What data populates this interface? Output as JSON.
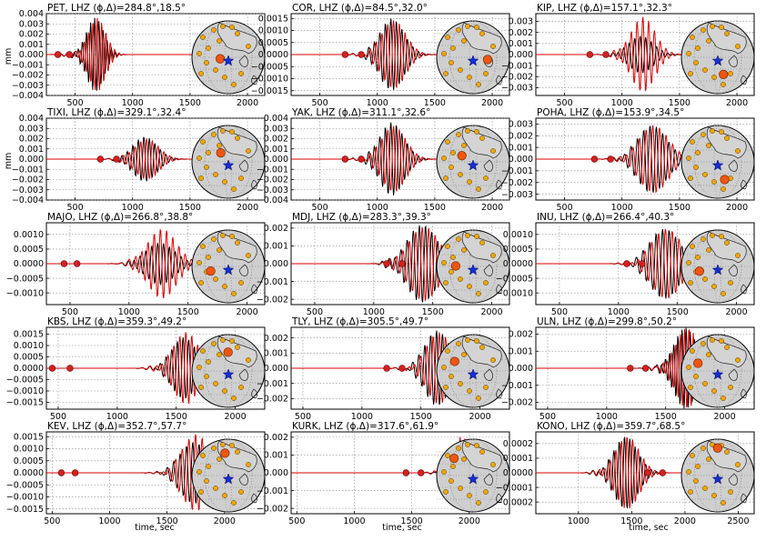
{
  "figure": {
    "ylabel_unit": "mm",
    "xlabel": "time, sec",
    "component_axis_label": "LHZ (ϕ,Δ)"
  },
  "chart_data": [
    {
      "type": "line",
      "station": "PET",
      "title": "PET, LHZ (ϕ,Δ)=284.8°,18.5°",
      "azimuth": 284.8,
      "distance": 18.5,
      "xticks": [
        500,
        1000,
        1500,
        2000
      ],
      "xlim": [
        250,
        2150
      ],
      "yticks": [
        -0.004,
        -0.003,
        -0.002,
        -0.001,
        0.0,
        0.001,
        0.002,
        0.003,
        0.004
      ],
      "ylim": [
        -0.004,
        0.004
      ],
      "ytick_labels": [
        "−0.004",
        "−0.003",
        "−0.002",
        "−0.001",
        "0.000",
        "0.001",
        "0.002",
        "0.003",
        "0.004"
      ],
      "markers_x": [
        350,
        450
      ],
      "arrival": 590,
      "peak": 0.0036,
      "black_amp": 1.0,
      "red_amp": 1.0,
      "dur": 240,
      "period": 36,
      "series": [
        {
          "name": "data",
          "color": "#000000"
        },
        {
          "name": "synthetic",
          "color": "#dd0000"
        }
      ]
    },
    {
      "type": "line",
      "station": "COR",
      "title": "COR, LHZ (ϕ,Δ)=84.5°,32.0°",
      "azimuth": 84.5,
      "distance": 32.0,
      "xticks": [
        500,
        1000,
        1500,
        2000
      ],
      "xlim": [
        250,
        2150
      ],
      "yticks": [
        -0.0015,
        -0.001,
        -0.0005,
        0.0,
        0.0005,
        0.001,
        0.0015
      ],
      "ylim": [
        -0.0017,
        0.0017
      ],
      "ytick_labels": [
        "−0.0015",
        "−0.0010",
        "−0.0005",
        "0.0000",
        "0.0005",
        "0.0010",
        "0.0015"
      ],
      "markers_x": [
        720,
        860
      ],
      "arrival": 1010,
      "peak": 0.0015,
      "black_amp": 1.0,
      "red_amp": 0.95,
      "dur": 330,
      "period": 48,
      "series": [
        {
          "name": "data",
          "color": "#000000"
        },
        {
          "name": "synthetic",
          "color": "#dd0000"
        }
      ]
    },
    {
      "type": "line",
      "station": "KIP",
      "title": "KIP, LHZ (ϕ,Δ)=157.1°,32.3°",
      "azimuth": 157.1,
      "distance": 32.3,
      "xticks": [
        500,
        1000,
        1500,
        2000
      ],
      "xlim": [
        250,
        2150
      ],
      "yticks": [
        -0.003,
        -0.002,
        -0.001,
        0.0,
        0.001,
        0.002,
        0.003
      ],
      "ylim": [
        -0.0037,
        0.0037
      ],
      "ytick_labels": [
        "−0.003",
        "−0.002",
        "−0.001",
        "0.000",
        "0.001",
        "0.002",
        "0.003"
      ],
      "markers_x": [
        720,
        860
      ],
      "arrival": 1050,
      "peak": 0.0034,
      "black_amp": 0.5,
      "red_amp": 1.0,
      "dur": 330,
      "period": 48,
      "series": [
        {
          "name": "data",
          "color": "#000000"
        },
        {
          "name": "synthetic",
          "color": "#dd0000"
        }
      ]
    },
    {
      "type": "line",
      "station": "TIXI",
      "title": "TIXI, LHZ (ϕ,Δ)=329.1°,32.4°",
      "azimuth": 329.1,
      "distance": 32.4,
      "xticks": [
        500,
        1000,
        1500,
        2000
      ],
      "xlim": [
        250,
        2150
      ],
      "yticks": [
        -0.004,
        -0.003,
        -0.002,
        -0.001,
        0.0,
        0.001,
        0.002,
        0.003,
        0.004
      ],
      "ylim": [
        -0.004,
        0.004
      ],
      "ytick_labels": [
        "−0.004",
        "−0.003",
        "−0.002",
        "−0.001",
        "0.000",
        "0.001",
        "0.002",
        "0.003",
        "0.004"
      ],
      "markers_x": [
        720,
        860
      ],
      "arrival": 990,
      "peak": 0.0022,
      "black_amp": 1.0,
      "red_amp": 0.9,
      "dur": 330,
      "period": 48,
      "series": [
        {
          "name": "data",
          "color": "#000000"
        },
        {
          "name": "synthetic",
          "color": "#dd0000"
        }
      ]
    },
    {
      "type": "line",
      "station": "YAK",
      "title": "YAK, LHZ (ϕ,Δ)=311.1°,32.6°",
      "azimuth": 311.1,
      "distance": 32.6,
      "xticks": [
        500,
        1000,
        1500,
        2000
      ],
      "xlim": [
        250,
        2150
      ],
      "yticks": [
        -0.004,
        -0.003,
        -0.002,
        -0.001,
        0.0,
        0.001,
        0.002,
        0.003,
        0.004
      ],
      "ylim": [
        -0.004,
        0.004
      ],
      "ytick_labels": [
        "−0.004",
        "−0.003",
        "−0.002",
        "−0.001",
        "0.000",
        "0.001",
        "0.002",
        "0.003",
        "0.004"
      ],
      "markers_x": [
        720,
        860
      ],
      "arrival": 1010,
      "peak": 0.0036,
      "black_amp": 1.0,
      "red_amp": 0.9,
      "dur": 330,
      "period": 48,
      "series": [
        {
          "name": "data",
          "color": "#000000"
        },
        {
          "name": "synthetic",
          "color": "#dd0000"
        }
      ]
    },
    {
      "type": "line",
      "station": "POHA",
      "title": "POHA, LHZ (ϕ,Δ)=153.9°,34.5°",
      "azimuth": 153.9,
      "distance": 34.5,
      "xticks": [
        500,
        1000,
        1500,
        2000
      ],
      "xlim": [
        250,
        2150
      ],
      "yticks": [
        -0.003,
        -0.002,
        -0.001,
        0.0,
        0.001,
        0.002,
        0.003
      ],
      "ylim": [
        -0.0035,
        0.0035
      ],
      "ytick_labels": [
        "−0.003",
        "−0.002",
        "−0.001",
        "0.000",
        "0.001",
        "0.002",
        "0.003"
      ],
      "markers_x": [
        760,
        900
      ],
      "arrival": 1120,
      "peak": 0.0029,
      "black_amp": 1.0,
      "red_amp": 1.0,
      "dur": 400,
      "period": 55,
      "series": [
        {
          "name": "data",
          "color": "#000000"
        },
        {
          "name": "synthetic",
          "color": "#dd0000"
        }
      ]
    },
    {
      "type": "line",
      "station": "MAJO",
      "title": "MAJO, LHZ (ϕ,Δ)=266.8°,38.8°",
      "azimuth": 266.8,
      "distance": 38.8,
      "xticks": [
        500,
        1000,
        1500,
        2000
      ],
      "xlim": [
        300,
        2150
      ],
      "yticks": [
        -0.001,
        -0.0005,
        0.0,
        0.0005,
        0.001
      ],
      "ylim": [
        -0.0014,
        0.0014
      ],
      "ytick_labels": [
        "−0.0010",
        "−0.0005",
        "0.0000",
        "0.0005",
        "0.0010"
      ],
      "markers_x": [
        450,
        560
      ],
      "arrival": 1130,
      "peak": 0.0012,
      "black_amp": 0.6,
      "red_amp": 1.0,
      "dur": 380,
      "period": 50,
      "series": [
        {
          "name": "data",
          "color": "#000000"
        },
        {
          "name": "synthetic",
          "color": "#dd0000"
        }
      ]
    },
    {
      "type": "line",
      "station": "MDJ",
      "title": "MDJ, LHZ (ϕ,Δ)=283.3°,39.3°",
      "azimuth": 283.3,
      "distance": 39.3,
      "xticks": [
        500,
        1000,
        1500,
        2000
      ],
      "xlim": [
        300,
        2150
      ],
      "yticks": [
        -0.002,
        -0.001,
        0.0,
        0.001,
        0.002
      ],
      "ylim": [
        -0.0023,
        0.0023
      ],
      "ytick_labels": [
        "−0.002",
        "−0.001",
        "0.000",
        "0.001",
        "0.002"
      ],
      "markers_x": [
        1110,
        1240
      ],
      "arrival": 1270,
      "peak": 0.0022,
      "black_amp": 1.0,
      "red_amp": 0.95,
      "dur": 400,
      "period": 52,
      "series": [
        {
          "name": "data",
          "color": "#000000"
        },
        {
          "name": "synthetic",
          "color": "#dd0000"
        }
      ]
    },
    {
      "type": "line",
      "station": "INU",
      "title": "INU, LHZ (ϕ,Δ)=266.4°,40.3°",
      "azimuth": 266.4,
      "distance": 40.3,
      "xticks": [
        500,
        1000,
        1500,
        2000
      ],
      "xlim": [
        300,
        2150
      ],
      "yticks": [
        -0.001,
        -0.0005,
        0.0,
        0.0005,
        0.001
      ],
      "ylim": [
        -0.0014,
        0.0014
      ],
      "ytick_labels": [
        "−0.0010",
        "−0.0005",
        "0.0000",
        "0.0005",
        "0.0010"
      ],
      "markers_x": [
        1070,
        1200
      ],
      "arrival": 1250,
      "peak": 0.0012,
      "black_amp": 1.0,
      "red_amp": 1.0,
      "dur": 400,
      "period": 55,
      "series": [
        {
          "name": "data",
          "color": "#000000"
        },
        {
          "name": "synthetic",
          "color": "#dd0000"
        }
      ]
    },
    {
      "type": "line",
      "station": "KBS",
      "title": "KBS, LHZ (ϕ,Δ)=359.3°,49.2°",
      "azimuth": 359.3,
      "distance": 49.2,
      "xticks": [
        500,
        1000,
        1500,
        2000
      ],
      "xlim": [
        400,
        2250
      ],
      "yticks": [
        -0.0015,
        -0.001,
        -0.0005,
        0.0,
        0.0005,
        0.001,
        0.0015
      ],
      "ylim": [
        -0.0018,
        0.0018
      ],
      "ytick_labels": [
        "−0.0015",
        "−0.0010",
        "−0.0005",
        "0.0000",
        "0.0005",
        "0.0010",
        "0.0015"
      ],
      "markers_x": [
        450,
        600
      ],
      "arrival": 1450,
      "peak": 0.0016,
      "black_amp": 0.85,
      "red_amp": 1.0,
      "dur": 330,
      "period": 48,
      "series": [
        {
          "name": "data",
          "color": "#000000"
        },
        {
          "name": "synthetic",
          "color": "#dd0000"
        }
      ]
    },
    {
      "type": "line",
      "station": "TLY",
      "title": "TLY, LHZ (ϕ,Δ)=305.5°,49.7°",
      "azimuth": 305.5,
      "distance": 49.7,
      "xticks": [
        500,
        1000,
        1500,
        2000
      ],
      "xlim": [
        400,
        2250
      ],
      "yticks": [
        -0.002,
        -0.001,
        0.0,
        0.001,
        0.002
      ],
      "ylim": [
        -0.0027,
        0.0027
      ],
      "ytick_labels": [
        "−0.002",
        "−0.001",
        "0.000",
        "0.001",
        "0.002"
      ],
      "markers_x": [
        1210,
        1340
      ],
      "arrival": 1520,
      "peak": 0.0025,
      "black_amp": 1.0,
      "red_amp": 0.95,
      "dur": 330,
      "period": 50,
      "series": [
        {
          "name": "data",
          "color": "#000000"
        },
        {
          "name": "synthetic",
          "color": "#dd0000"
        }
      ]
    },
    {
      "type": "line",
      "station": "ULN",
      "title": "ULN, LHZ (ϕ,Δ)=299.8°,50.2°",
      "azimuth": 299.8,
      "distance": 50.2,
      "xticks": [
        500,
        1000,
        1500,
        2000
      ],
      "xlim": [
        400,
        2250
      ],
      "yticks": [
        -0.002,
        -0.001,
        0.0,
        0.001,
        0.002
      ],
      "ylim": [
        -0.0024,
        0.0024
      ],
      "ytick_labels": [
        "−0.002",
        "−0.001",
        "0.000",
        "0.001",
        "0.002"
      ],
      "markers_x": [
        1200,
        1330
      ],
      "arrival": 1560,
      "peak": 0.0024,
      "black_amp": 1.0,
      "red_amp": 1.0,
      "dur": 300,
      "period": 35,
      "series": [
        {
          "name": "data",
          "color": "#000000"
        },
        {
          "name": "synthetic",
          "color": "#dd0000"
        }
      ]
    },
    {
      "type": "line",
      "station": "KEV",
      "title": "KEV, LHZ (ϕ,Δ)=352.7°,57.7°",
      "azimuth": 352.7,
      "distance": 57.7,
      "xticks": [
        500,
        1000,
        1500,
        2000
      ],
      "xlim": [
        450,
        2350
      ],
      "yticks": [
        -0.0015,
        -0.001,
        -0.0005,
        0.0,
        0.0005,
        0.001,
        0.0015
      ],
      "ylim": [
        -0.0017,
        0.0017
      ],
      "ytick_labels": [
        "−0.0015",
        "−0.0010",
        "−0.0005",
        "0.0000",
        "0.0005",
        "0.0010",
        "0.0015"
      ],
      "markers_x": [
        580,
        700
      ],
      "arrival": 1600,
      "peak": 0.0016,
      "black_amp": 0.8,
      "red_amp": 1.0,
      "dur": 380,
      "period": 55,
      "series": [
        {
          "name": "data",
          "color": "#000000"
        },
        {
          "name": "synthetic",
          "color": "#dd0000"
        }
      ]
    },
    {
      "type": "line",
      "station": "KURK",
      "title": "KURK, LHZ (ϕ,Δ)=317.6°,61.9°",
      "azimuth": 317.6,
      "distance": 61.9,
      "xticks": [
        500,
        1000,
        1500,
        2000
      ],
      "xlim": [
        450,
        2350
      ],
      "yticks": [
        -0.002,
        -0.001,
        0.0,
        0.001,
        0.002
      ],
      "ylim": [
        -0.0023,
        0.0023
      ],
      "ytick_labels": [
        "−0.002",
        "−0.001",
        "0.000",
        "0.001",
        "0.002"
      ],
      "markers_x": [
        1450,
        1580
      ],
      "arrival": 1850,
      "peak": 0.0021,
      "black_amp": 0.3,
      "red_amp": 1.0,
      "dur": 200,
      "period": 40,
      "series": [
        {
          "name": "data",
          "color": "#000000"
        },
        {
          "name": "synthetic",
          "color": "#dd0000"
        }
      ]
    },
    {
      "type": "line",
      "station": "KONO",
      "title": "KONO, LHZ (ϕ,Δ)=359.7°,68.5°",
      "azimuth": 359.7,
      "distance": 68.5,
      "xticks": [
        1000,
        1500,
        2000,
        2500
      ],
      "xlim": [
        600,
        2650
      ],
      "yticks": [
        -0.0002,
        -0.0001,
        0.0,
        0.0001,
        0.0002
      ],
      "ylim": [
        -0.00028,
        0.00028
      ],
      "ytick_labels": [
        "−0.0002",
        "−0.0001",
        "0.0000",
        "0.0001",
        "0.0002"
      ],
      "markers_x": [
        1650,
        1790
      ],
      "arrival": 1320,
      "peak": 0.00025,
      "black_amp": 1.0,
      "red_amp": 1.0,
      "dur": 350,
      "period": 50,
      "series": [
        {
          "name": "data",
          "color": "#000000"
        },
        {
          "name": "synthetic",
          "color": "#dd0000"
        }
      ]
    }
  ]
}
